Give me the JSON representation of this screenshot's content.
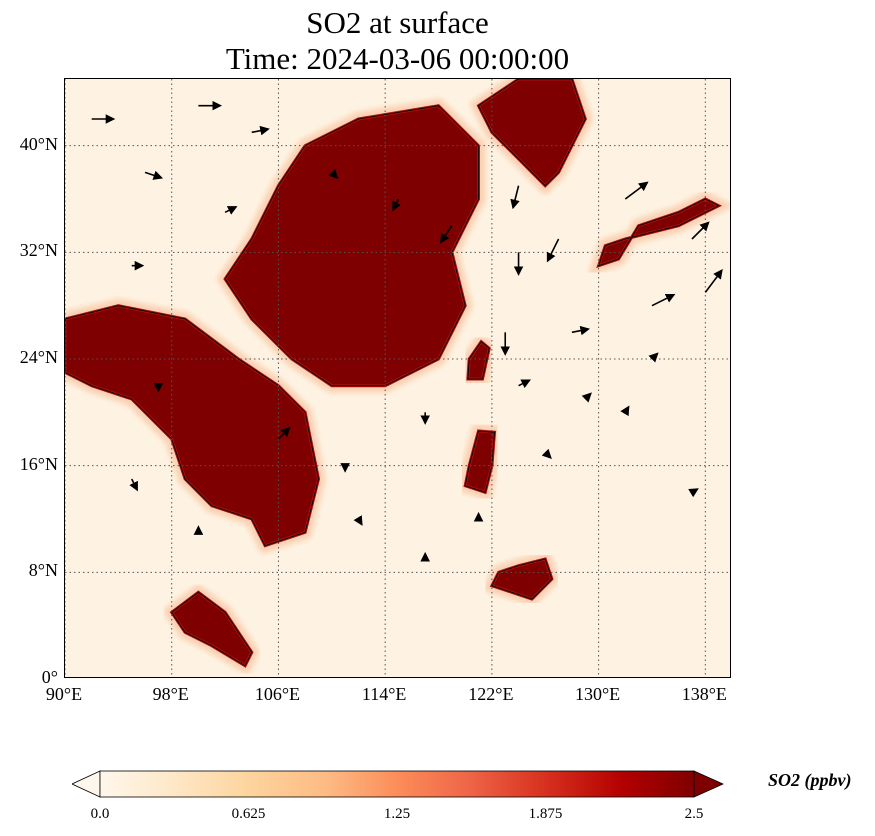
{
  "title": {
    "line1": "SO2 at surface",
    "line2": "Time: 2024-03-06 00:00:00"
  },
  "map": {
    "extent": {
      "lon_min": 90,
      "lon_max": 140,
      "lat_min": 0,
      "lat_max": 45
    },
    "lat_ticks": [
      {
        "value": 0,
        "label": "0°"
      },
      {
        "value": 8,
        "label": "8°N"
      },
      {
        "value": 16,
        "label": "16°N"
      },
      {
        "value": 24,
        "label": "24°N"
      },
      {
        "value": 32,
        "label": "32°N"
      },
      {
        "value": 40,
        "label": "40°N"
      }
    ],
    "lon_ticks": [
      {
        "value": 90,
        "label": "90°E"
      },
      {
        "value": 98,
        "label": "98°E"
      },
      {
        "value": 106,
        "label": "106°E"
      },
      {
        "value": 114,
        "label": "114°E"
      },
      {
        "value": 122,
        "label": "122°E"
      },
      {
        "value": 130,
        "label": "130°E"
      },
      {
        "value": 138,
        "label": "138°E"
      }
    ],
    "gridlines": true,
    "colormap": "OrRd",
    "colors": {
      "low": "#fff7ec",
      "mid": "#f16c4a",
      "high": "#7f0000",
      "coast": "#000000"
    },
    "high_so2_regions": [
      {
        "name": "north-china",
        "polygon": [
          [
            108,
            40
          ],
          [
            112,
            42
          ],
          [
            118,
            43
          ],
          [
            121,
            40
          ],
          [
            121,
            36
          ],
          [
            119,
            32
          ],
          [
            120,
            28
          ],
          [
            118,
            24
          ],
          [
            114,
            22
          ],
          [
            110,
            22
          ],
          [
            107,
            24
          ],
          [
            104,
            27
          ],
          [
            102,
            30
          ],
          [
            104,
            33
          ],
          [
            106,
            37
          ]
        ]
      },
      {
        "name": "northeast-china-korea",
        "polygon": [
          [
            121,
            43
          ],
          [
            124,
            45
          ],
          [
            128,
            45
          ],
          [
            129,
            42
          ],
          [
            127,
            38
          ],
          [
            126,
            37
          ],
          [
            124,
            39
          ],
          [
            122,
            41
          ]
        ]
      },
      {
        "name": "indochina",
        "polygon": [
          [
            90,
            27
          ],
          [
            94,
            28
          ],
          [
            99,
            27
          ],
          [
            103,
            24
          ],
          [
            106,
            22
          ],
          [
            108,
            20
          ],
          [
            109,
            15
          ],
          [
            108,
            11
          ],
          [
            105,
            10
          ],
          [
            104,
            12
          ],
          [
            101,
            13
          ],
          [
            99,
            15
          ],
          [
            98,
            18
          ],
          [
            95,
            21
          ],
          [
            92,
            22
          ],
          [
            90,
            23
          ]
        ]
      },
      {
        "name": "taiwan",
        "polygon": [
          [
            120.2,
            22.5
          ],
          [
            121.3,
            22.5
          ],
          [
            121.8,
            24.8
          ],
          [
            121.2,
            25.3
          ],
          [
            120.3,
            24.0
          ]
        ]
      },
      {
        "name": "luzon",
        "polygon": [
          [
            120,
            14.5
          ],
          [
            121.5,
            14
          ],
          [
            122,
            16
          ],
          [
            122.2,
            18.5
          ],
          [
            121,
            18.6
          ],
          [
            120.3,
            16
          ]
        ]
      },
      {
        "name": "mindanao",
        "polygon": [
          [
            122,
            7
          ],
          [
            125,
            6
          ],
          [
            126.5,
            7.5
          ],
          [
            126,
            9
          ],
          [
            124,
            8.5
          ],
          [
            122.5,
            8
          ]
        ]
      },
      {
        "name": "malaysia-sumatra",
        "polygon": [
          [
            100,
            6.5
          ],
          [
            102,
            5
          ],
          [
            104,
            2
          ],
          [
            103.5,
            1
          ],
          [
            101,
            2.5
          ],
          [
            99,
            3.5
          ],
          [
            98,
            5
          ]
        ]
      },
      {
        "name": "japan-south",
        "polygon": [
          [
            130,
            31
          ],
          [
            131.5,
            31.5
          ],
          [
            133,
            34
          ],
          [
            136,
            35
          ],
          [
            138,
            36
          ],
          [
            139,
            35.5
          ],
          [
            136,
            34
          ],
          [
            132,
            33
          ],
          [
            130.5,
            32.5
          ]
        ]
      }
    ],
    "wind_vectors": [
      {
        "lon": 92,
        "lat": 42,
        "u": 2,
        "v": 0
      },
      {
        "lon": 96,
        "lat": 38,
        "u": 1.5,
        "v": -0.5
      },
      {
        "lon": 100,
        "lat": 43,
        "u": 2,
        "v": 0
      },
      {
        "lon": 104,
        "lat": 41,
        "u": 1.5,
        "v": 0.3
      },
      {
        "lon": 102,
        "lat": 35,
        "u": 1,
        "v": 0.5
      },
      {
        "lon": 95,
        "lat": 31,
        "u": 1,
        "v": 0
      },
      {
        "lon": 110,
        "lat": 38,
        "u": 0.5,
        "v": -0.5
      },
      {
        "lon": 115,
        "lat": 36,
        "u": -0.5,
        "v": -1
      },
      {
        "lon": 119,
        "lat": 34,
        "u": -1,
        "v": -1.5
      },
      {
        "lon": 124,
        "lat": 37,
        "u": -0.5,
        "v": -2
      },
      {
        "lon": 124,
        "lat": 32,
        "u": 0,
        "v": -2
      },
      {
        "lon": 127,
        "lat": 33,
        "u": -1,
        "v": -2
      },
      {
        "lon": 132,
        "lat": 36,
        "u": 2,
        "v": 1.5
      },
      {
        "lon": 137,
        "lat": 33,
        "u": 1.5,
        "v": 1.5
      },
      {
        "lon": 134,
        "lat": 28,
        "u": 2,
        "v": 1
      },
      {
        "lon": 138,
        "lat": 29,
        "u": 1.5,
        "v": 2
      },
      {
        "lon": 128,
        "lat": 26,
        "u": 1.5,
        "v": 0.3
      },
      {
        "lon": 124,
        "lat": 22,
        "u": 1,
        "v": 0.5
      },
      {
        "lon": 129,
        "lat": 21,
        "u": 0.5,
        "v": 0.5
      },
      {
        "lon": 134,
        "lat": 24,
        "u": 0.5,
        "v": 0.5
      },
      {
        "lon": 123,
        "lat": 26,
        "u": 0,
        "v": -2
      },
      {
        "lon": 117,
        "lat": 20,
        "u": 0,
        "v": -1
      },
      {
        "lon": 111,
        "lat": 16,
        "u": 0,
        "v": -0.5
      },
      {
        "lon": 106,
        "lat": 18,
        "u": 1,
        "v": 1
      },
      {
        "lon": 97,
        "lat": 22,
        "u": 0,
        "v": -0.5
      },
      {
        "lon": 95,
        "lat": 15,
        "u": 0.5,
        "v": -1
      },
      {
        "lon": 100,
        "lat": 11,
        "u": 0,
        "v": 0.5
      },
      {
        "lon": 112,
        "lat": 12,
        "u": 0.3,
        "v": -0.5
      },
      {
        "lon": 117,
        "lat": 9,
        "u": 0,
        "v": 0.5
      },
      {
        "lon": 121,
        "lat": 12,
        "u": 0,
        "v": 0.5
      },
      {
        "lon": 126,
        "lat": 17,
        "u": 0.5,
        "v": -0.5
      },
      {
        "lon": 132,
        "lat": 20,
        "u": 0.3,
        "v": 0.5
      },
      {
        "lon": 137,
        "lat": 14,
        "u": 0.5,
        "v": 0.3
      }
    ]
  },
  "colorbar": {
    "label": "SO2 (ppbv)",
    "min": 0,
    "max": 2.5,
    "ticks": [
      {
        "value": 0,
        "label": "0.0"
      },
      {
        "value": 0.625,
        "label": "0.625"
      },
      {
        "value": 1.25,
        "label": "1.25"
      },
      {
        "value": 1.875,
        "label": "1.875"
      },
      {
        "value": 2.5,
        "label": "2.5"
      }
    ]
  }
}
